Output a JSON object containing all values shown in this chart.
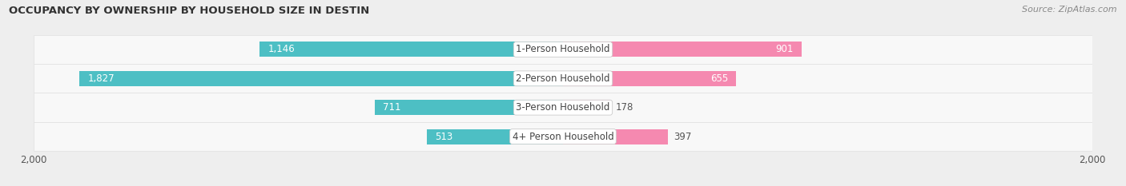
{
  "title": "OCCUPANCY BY OWNERSHIP BY HOUSEHOLD SIZE IN DESTIN",
  "source": "Source: ZipAtlas.com",
  "categories": [
    "4+ Person Household",
    "3-Person Household",
    "2-Person Household",
    "1-Person Household"
  ],
  "owner_values": [
    513,
    711,
    1827,
    1146
  ],
  "renter_values": [
    397,
    178,
    655,
    901
  ],
  "owner_color": "#4dbfc4",
  "renter_color": "#f589b0",
  "axis_max": 2000,
  "bg_color": "#eeeeee",
  "row_bg_even": "#f7f7f7",
  "row_bg_odd": "#ffffff",
  "bar_height": 0.52,
  "label_fontsize": 8.5,
  "title_fontsize": 9.5,
  "source_fontsize": 8,
  "owner_inside_threshold": 400,
  "renter_inside_threshold": 400
}
